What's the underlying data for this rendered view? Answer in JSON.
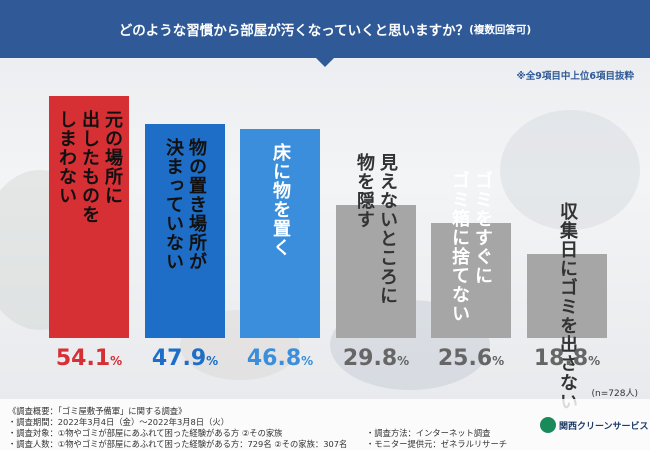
{
  "title": {
    "main": "どのような習慣から部屋が汚くなっていくと思いますか？",
    "sub": "(複数回答可)"
  },
  "note": "※全9項目中上位6項目抜粋",
  "n_label": "(n=728人)",
  "colors": {
    "title_bg": "#2f5a97",
    "bar_red": "#d62f34",
    "bar_blue_dark": "#1e6ec7",
    "bar_blue_light": "#3a8edb",
    "bar_gray": "#a6a6a6"
  },
  "chart_data": {
    "type": "bar",
    "categories": [
      "元の場所に出したものを しまわない",
      "物の置き場所が決まっていない",
      "床に物を置く",
      "見えないところに物を隠す",
      "ゴミをすぐにゴミ箱に捨てない",
      "収集日にゴミを出さない"
    ],
    "labels": [
      [
        "元の場所に",
        "出したものを",
        "しまわない"
      ],
      [
        "物の置き場所が",
        "決まっていない"
      ],
      [
        "床に物を置く"
      ],
      [
        "見えないところに",
        "物を隠す"
      ],
      [
        "ゴミをすぐに",
        "ゴミ箱に捨てない"
      ],
      [
        "収集日にゴミを出さない"
      ]
    ],
    "values": [
      54.1,
      47.9,
      46.8,
      29.8,
      25.6,
      18.8
    ],
    "value_labels": [
      {
        "num": "54.1",
        "pct": "%"
      },
      {
        "num": "47.9",
        "pct": "%"
      },
      {
        "num": "46.8",
        "pct": "%"
      },
      {
        "num": "29.8",
        "pct": "%"
      },
      {
        "num": "25.6",
        "pct": "%"
      },
      {
        "num": "18.8",
        "pct": "%"
      }
    ],
    "bar_colors": [
      "#d62f34",
      "#1e6ec7",
      "#3a8edb",
      "#a6a6a6",
      "#a6a6a6",
      "#a6a6a6"
    ],
    "label_colors": [
      "#111111",
      "#111111",
      "#ffffff",
      "#333333",
      "#ffffff",
      "#333333"
    ],
    "value_colors": [
      "#d62f34",
      "#1e6ec7",
      "#3a8edb",
      "#666666",
      "#666666",
      "#666666"
    ],
    "ylim": [
      0,
      54.1
    ]
  },
  "footer": {
    "line1": "《調査概要：「ゴミ屋敷予備軍」に関する調査》",
    "line2": "・調査期間：2022年3月4日（金）～2022年3月8日（火）",
    "line3": "・調査対象：①物やゴミが部屋にあふれて困った経験がある方 ②その家族",
    "line4": "・調査人数：①物やゴミが部屋にあふれて困った経験がある方：729名 ②その家族：307名",
    "method": "・調査方法：インターネット調査",
    "provider": "・モニター提供元：ゼネラルリサーチ",
    "logo": "関西クリーンサービス"
  }
}
